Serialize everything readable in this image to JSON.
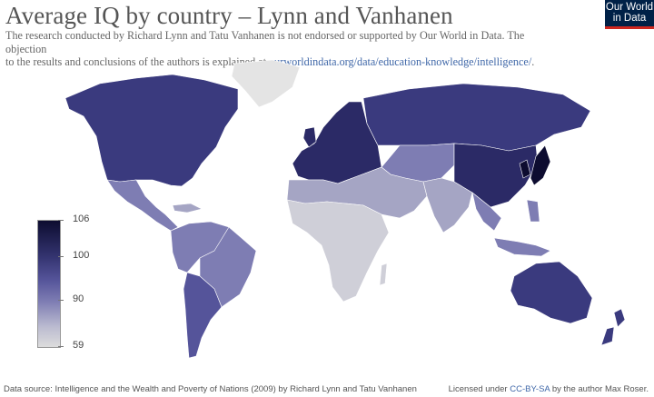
{
  "header": {
    "title": "Average IQ by country – Lynn and Vanhanen",
    "subtitle_line1": "The research conducted by Richard Lynn and Tatu Vanhanen is not endorsed or supported by Our World in Data. The objection",
    "subtitle_line2": "to the results and conclusions of the authors is explained at ",
    "subtitle_link": "ourworldindata.org/data/education-knowledge/intelligence/",
    "subtitle_end": "."
  },
  "logo": {
    "line1": "Our World",
    "line2": "in Data"
  },
  "legend": {
    "ticks": [
      "106",
      "100",
      "90",
      "59"
    ],
    "values": [
      106,
      100,
      90,
      59
    ],
    "colors": [
      "#0d0c30",
      "#33336f",
      "#7e7db3",
      "#dcdcdc"
    ]
  },
  "footer": {
    "source": "Data source: Intelligence and the Wealth and Poverty of Nations (2009) by Richard Lynn and Tatu Vanhanen",
    "license_prefix": "Licensed under ",
    "license_link": "CC-BY-SA",
    "license_suffix": " by the author Max Roser."
  },
  "map_colors": {
    "very_high": "#0d0c30",
    "high": "#2b2a66",
    "mid_high": "#3a3a7e",
    "mid": "#55549a",
    "mid_low": "#7e7db3",
    "low": "#a5a5c4",
    "lowest": "#cfcfd8",
    "no_data": "#e4e4e4"
  },
  "regions": [
    {
      "name": "Canada / USA",
      "color": "mid_high"
    },
    {
      "name": "Mexico & Central America",
      "color": "mid_low"
    },
    {
      "name": "South America north",
      "color": "mid_low"
    },
    {
      "name": "Brazil",
      "color": "mid_low"
    },
    {
      "name": "Argentina / Chile / Uruguay",
      "color": "mid"
    },
    {
      "name": "Greenland",
      "color": "no_data"
    },
    {
      "name": "Europe",
      "color": "high"
    },
    {
      "name": "Russia",
      "color": "mid_high"
    },
    {
      "name": "Central Asia",
      "color": "mid_low"
    },
    {
      "name": "North Africa & Middle East",
      "color": "low"
    },
    {
      "name": "Sub-Saharan Africa",
      "color": "lowest"
    },
    {
      "name": "South Asia",
      "color": "low"
    },
    {
      "name": "China",
      "color": "high"
    },
    {
      "name": "Japan & Korea",
      "color": "very_high"
    },
    {
      "name": "Southeast Asia",
      "color": "mid_low"
    },
    {
      "name": "Australia",
      "color": "mid_high"
    },
    {
      "name": "New Zealand",
      "color": "mid_high"
    }
  ]
}
